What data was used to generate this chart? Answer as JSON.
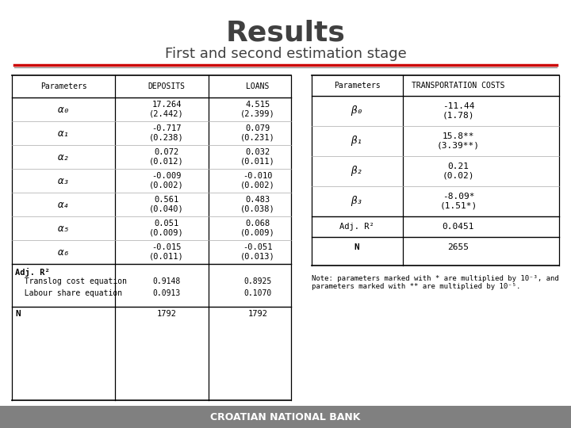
{
  "title": "Results",
  "subtitle": "First and second estimation stage",
  "title_color": "#404040",
  "subtitle_color": "#404040",
  "red_line_color": "#cc0000",
  "gray_line_color": "#888888",
  "footer_bg": "#808080",
  "footer_text": "CROATIAN NATIONAL BANK",
  "footer_text_color": "#ffffff",
  "note": "Note: parameters marked with * are multiplied by 10⁻³, and\nparameters marked with ** are multiplied by 10⁻⁵.",
  "t1_row_data": [
    [
      "α₀",
      "17.264\n(2.442)",
      "4.515\n(2.399)"
    ],
    [
      "α₁",
      "-0.717\n(0.238)",
      "0.079\n(0.231)"
    ],
    [
      "α₂",
      "0.072\n(0.012)",
      "0.032\n(0.011)"
    ],
    [
      "α₃",
      "-0.009\n(0.002)",
      "-0.010\n(0.002)"
    ],
    [
      "α₄",
      "0.561\n(0.040)",
      "0.483\n(0.038)"
    ],
    [
      "α₅",
      "0.051\n(0.009)",
      "0.068\n(0.009)"
    ],
    [
      "α₆",
      "-0.015\n(0.011)",
      "-0.051\n(0.013)"
    ]
  ],
  "t1_sub_rows": [
    [
      "  Translog cost equation",
      "0.9148",
      "0.8925"
    ],
    [
      "  Labour share equation",
      "0.0913",
      "0.1070"
    ]
  ],
  "t1_n_row": [
    "N",
    "1792",
    "1792"
  ],
  "t2_row_data": [
    [
      "β₀",
      "-11.44\n(1.78)"
    ],
    [
      "β₁",
      "15.8**\n(3.39**)"
    ],
    [
      "β₂",
      "0.21\n(0.02)"
    ],
    [
      "β₃",
      "-8.09*\n(1.51*)"
    ]
  ],
  "t2_adj_r2": [
    "Adj. R²",
    "0.0451"
  ],
  "t2_n_row": [
    "N",
    "2655"
  ]
}
